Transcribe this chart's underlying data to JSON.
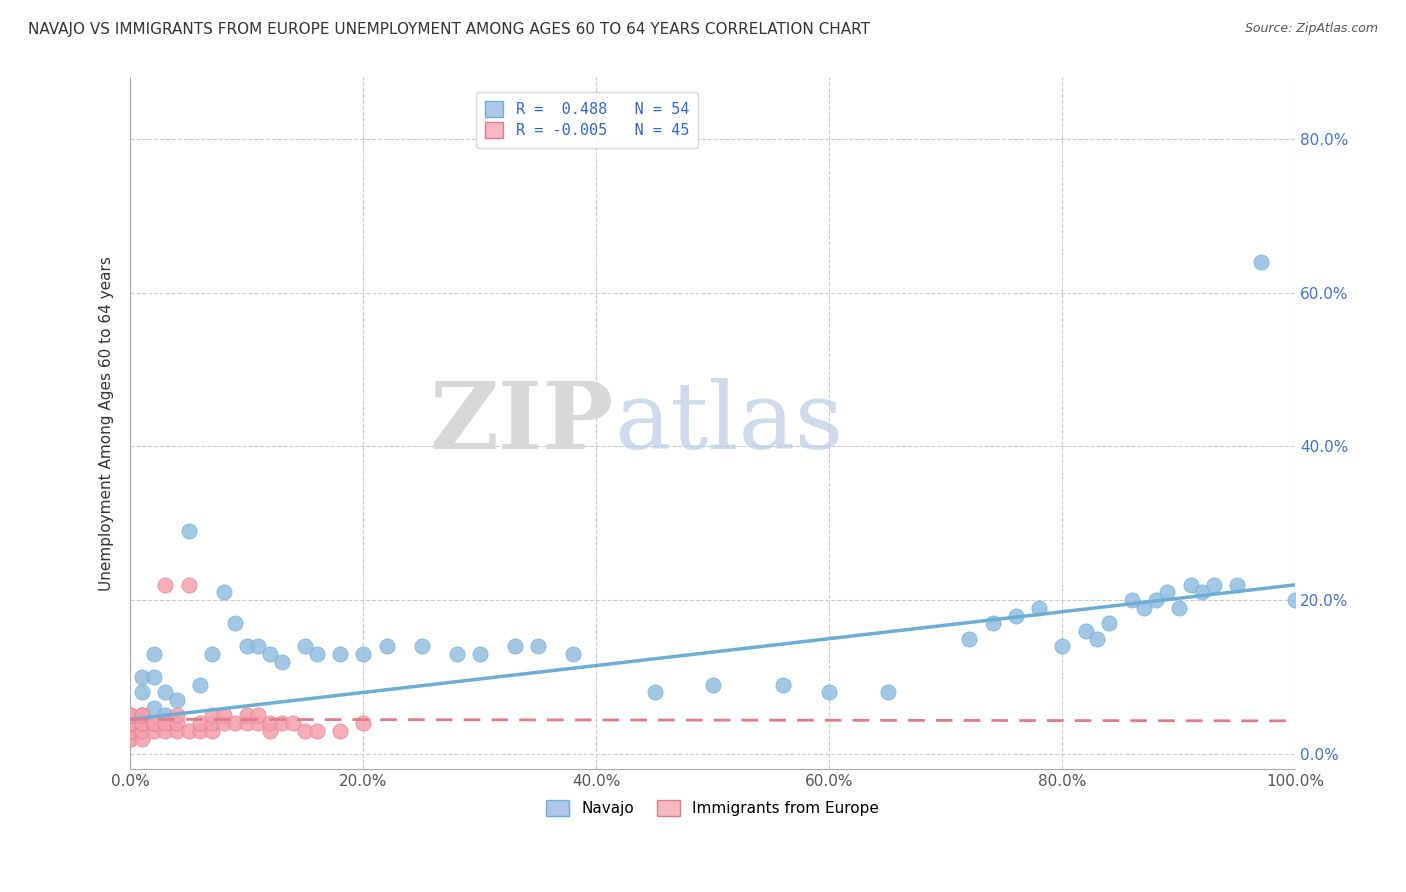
{
  "title": "NAVAJO VS IMMIGRANTS FROM EUROPE UNEMPLOYMENT AMONG AGES 60 TO 64 YEARS CORRELATION CHART",
  "source": "Source: ZipAtlas.com",
  "ylabel": "Unemployment Among Ages 60 to 64 years",
  "xlim": [
    0,
    1.0
  ],
  "ylim": [
    -0.02,
    0.88
  ],
  "xticks": [
    0.0,
    0.2,
    0.4,
    0.6,
    0.8,
    1.0
  ],
  "xticklabels": [
    "0.0%",
    "20.0%",
    "40.0%",
    "60.0%",
    "80.0%",
    "100.0%"
  ],
  "yticks": [
    0.0,
    0.2,
    0.4,
    0.6,
    0.8
  ],
  "yticklabels": [
    "0.0%",
    "20.0%",
    "40.0%",
    "60.0%",
    "80.0%"
  ],
  "watermark_zip": "ZIP",
  "watermark_atlas": "atlas",
  "legend_entries": [
    {
      "label": "R =  0.488   N = 54",
      "facecolor": "#aec6e8",
      "edgecolor": "#6aaed6"
    },
    {
      "label": "R = -0.005   N = 45",
      "facecolor": "#f4b8c1",
      "edgecolor": "#e07b8a"
    }
  ],
  "navajo_color": "#92bde0",
  "navajo_edge": "#6aaed6",
  "immigrant_color": "#f4a0ac",
  "immigrant_edge": "#e07b8a",
  "navajo_scatter": [
    [
      0.0,
      0.03
    ],
    [
      0.01,
      0.05
    ],
    [
      0.01,
      0.08
    ],
    [
      0.01,
      0.1
    ],
    [
      0.02,
      0.06
    ],
    [
      0.02,
      0.1
    ],
    [
      0.02,
      0.13
    ],
    [
      0.03,
      0.08
    ],
    [
      0.03,
      0.05
    ],
    [
      0.04,
      0.07
    ],
    [
      0.05,
      0.29
    ],
    [
      0.06,
      0.09
    ],
    [
      0.07,
      0.13
    ],
    [
      0.08,
      0.21
    ],
    [
      0.09,
      0.17
    ],
    [
      0.1,
      0.14
    ],
    [
      0.11,
      0.14
    ],
    [
      0.12,
      0.13
    ],
    [
      0.13,
      0.12
    ],
    [
      0.15,
      0.14
    ],
    [
      0.16,
      0.13
    ],
    [
      0.18,
      0.13
    ],
    [
      0.2,
      0.13
    ],
    [
      0.22,
      0.14
    ],
    [
      0.25,
      0.14
    ],
    [
      0.28,
      0.13
    ],
    [
      0.3,
      0.13
    ],
    [
      0.33,
      0.14
    ],
    [
      0.35,
      0.14
    ],
    [
      0.38,
      0.13
    ],
    [
      0.45,
      0.08
    ],
    [
      0.5,
      0.09
    ],
    [
      0.56,
      0.09
    ],
    [
      0.6,
      0.08
    ],
    [
      0.65,
      0.08
    ],
    [
      0.72,
      0.15
    ],
    [
      0.74,
      0.17
    ],
    [
      0.76,
      0.18
    ],
    [
      0.78,
      0.19
    ],
    [
      0.8,
      0.14
    ],
    [
      0.82,
      0.16
    ],
    [
      0.83,
      0.15
    ],
    [
      0.84,
      0.17
    ],
    [
      0.86,
      0.2
    ],
    [
      0.87,
      0.19
    ],
    [
      0.88,
      0.2
    ],
    [
      0.89,
      0.21
    ],
    [
      0.9,
      0.19
    ],
    [
      0.91,
      0.22
    ],
    [
      0.92,
      0.21
    ],
    [
      0.93,
      0.22
    ],
    [
      0.95,
      0.22
    ],
    [
      0.97,
      0.64
    ],
    [
      1.0,
      0.2
    ]
  ],
  "immigrant_scatter": [
    [
      0.0,
      0.02
    ],
    [
      0.0,
      0.02
    ],
    [
      0.0,
      0.03
    ],
    [
      0.0,
      0.03
    ],
    [
      0.0,
      0.04
    ],
    [
      0.0,
      0.04
    ],
    [
      0.0,
      0.05
    ],
    [
      0.0,
      0.05
    ],
    [
      0.01,
      0.02
    ],
    [
      0.01,
      0.03
    ],
    [
      0.01,
      0.04
    ],
    [
      0.01,
      0.04
    ],
    [
      0.01,
      0.05
    ],
    [
      0.01,
      0.05
    ],
    [
      0.02,
      0.03
    ],
    [
      0.02,
      0.04
    ],
    [
      0.02,
      0.04
    ],
    [
      0.03,
      0.03
    ],
    [
      0.03,
      0.04
    ],
    [
      0.03,
      0.22
    ],
    [
      0.04,
      0.03
    ],
    [
      0.04,
      0.04
    ],
    [
      0.04,
      0.05
    ],
    [
      0.05,
      0.03
    ],
    [
      0.05,
      0.22
    ],
    [
      0.06,
      0.03
    ],
    [
      0.06,
      0.04
    ],
    [
      0.07,
      0.03
    ],
    [
      0.07,
      0.04
    ],
    [
      0.07,
      0.05
    ],
    [
      0.08,
      0.04
    ],
    [
      0.08,
      0.05
    ],
    [
      0.09,
      0.04
    ],
    [
      0.1,
      0.04
    ],
    [
      0.1,
      0.05
    ],
    [
      0.11,
      0.04
    ],
    [
      0.11,
      0.05
    ],
    [
      0.12,
      0.03
    ],
    [
      0.12,
      0.04
    ],
    [
      0.13,
      0.04
    ],
    [
      0.14,
      0.04
    ],
    [
      0.15,
      0.03
    ],
    [
      0.16,
      0.03
    ],
    [
      0.18,
      0.03
    ],
    [
      0.2,
      0.04
    ]
  ],
  "navajo_trend_x": [
    0.0,
    1.0
  ],
  "navajo_trend_slope": 0.175,
  "navajo_trend_intercept": 0.045,
  "immigrant_trend_x": [
    0.0,
    1.0
  ],
  "immigrant_trend_slope": -0.002,
  "immigrant_trend_intercept": 0.045,
  "background_color": "#ffffff",
  "grid_color": "#cccccc",
  "title_fontsize": 11,
  "axis_label_fontsize": 11,
  "tick_fontsize": 11,
  "right_tick_color": "#4472c4",
  "axis_color": "#aaaaaa"
}
